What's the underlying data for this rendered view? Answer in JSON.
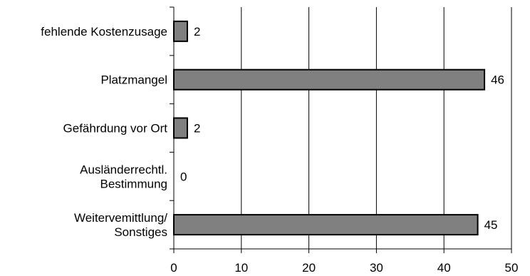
{
  "chart_data": {
    "type": "bar",
    "orientation": "horizontal",
    "title": "",
    "xlabel": "",
    "ylabel": "",
    "categories": [
      [
        "fehlende Kostenzusage"
      ],
      [
        "Platzmangel"
      ],
      [
        "Gefährdung vor Ort"
      ],
      [
        "Ausländerrechtl.",
        "Bestimmung"
      ],
      [
        "Weitervemittlung/",
        "Sonstiges"
      ]
    ],
    "values": [
      2,
      46,
      2,
      0,
      45
    ],
    "value_labels": [
      "2",
      "46",
      "2",
      "0",
      "45"
    ],
    "xlim": [
      0,
      50
    ],
    "xticks": [
      0,
      10,
      20,
      30,
      40,
      50
    ],
    "xtick_labels": [
      "0",
      "10",
      "20",
      "30",
      "40",
      "50"
    ],
    "grid": "vertical",
    "legend": "none",
    "bar_color": "#808080",
    "bar_edge_color": "#000000"
  }
}
